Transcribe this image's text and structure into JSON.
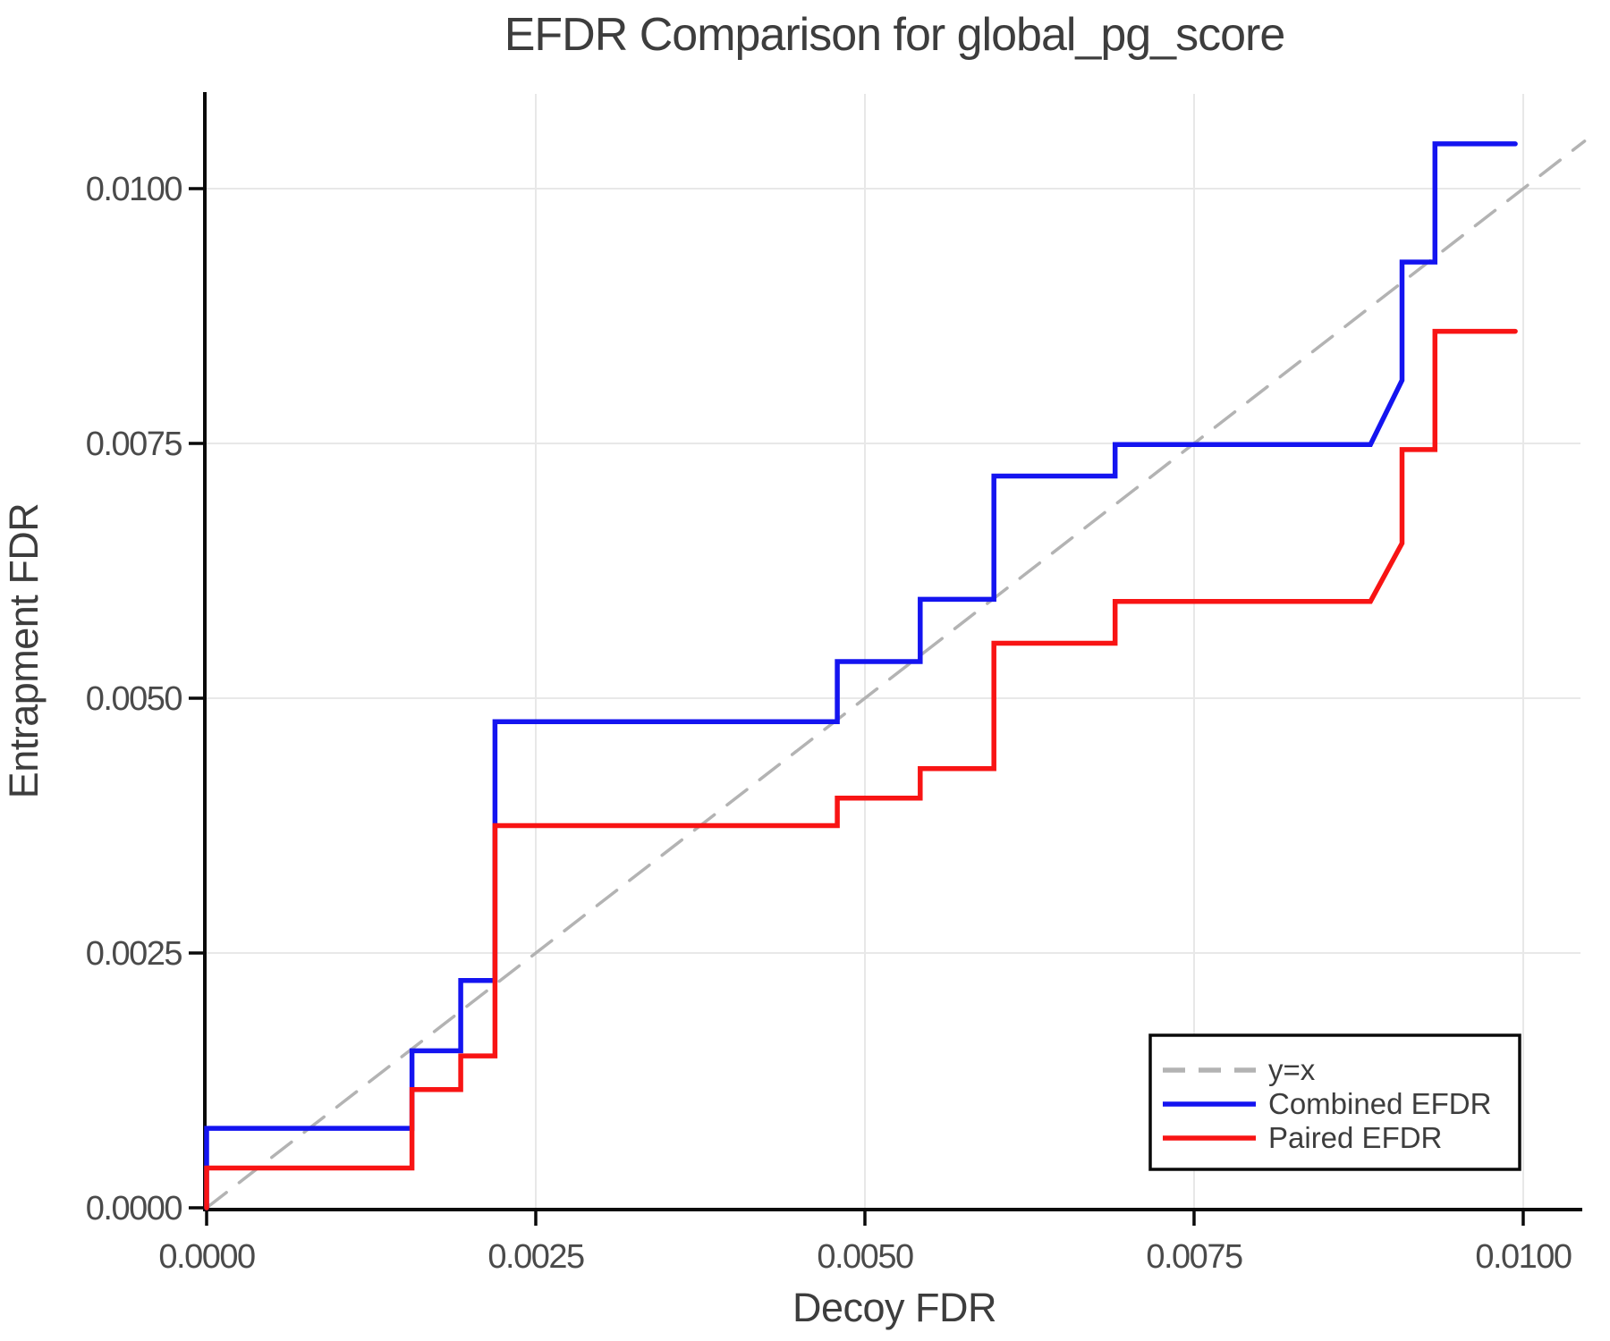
{
  "title": "EFDR Comparison for global_pg_score",
  "chart_data": {
    "type": "line",
    "subtype": "step-comparison",
    "title": "EFDR Comparison for global_pg_score",
    "xlabel": "Decoy FDR",
    "ylabel": "Entrapment FDR",
    "xlim": [
      0,
      0.010435
    ],
    "ylim": [
      0,
      0.01093
    ],
    "x_ticks": [
      0.0,
      0.0025,
      0.005,
      0.0075,
      0.01
    ],
    "y_ticks": [
      0.0,
      0.0025,
      0.005,
      0.0075,
      0.01
    ],
    "tick_decimals": 4,
    "grid": true,
    "legend_position": "lower right",
    "colors": {
      "combined": "#1414f0",
      "paired": "#f81414",
      "identity": "#b3b3b3",
      "grid": "#e8e8e8",
      "text": "#3d3d3d"
    },
    "series": [
      {
        "name": "y=x",
        "color": "#b3b3b3",
        "style": "dashed",
        "points": [
          [
            0,
            0
          ],
          [
            0.010466,
            0.010466
          ]
        ]
      },
      {
        "name": "Combined EFDR",
        "color": "#1414f0",
        "style": "solid",
        "points": [
          [
            0,
            0
          ],
          [
            0,
            0.00078
          ],
          [
            0.00156,
            0.00078
          ],
          [
            0.00156,
            0.00154
          ],
          [
            0.00193,
            0.00154
          ],
          [
            0.00193,
            0.00223
          ],
          [
            0.00219,
            0.00223
          ],
          [
            0.00219,
            0.00477
          ],
          [
            0.00479,
            0.00477
          ],
          [
            0.00479,
            0.00536
          ],
          [
            0.00542,
            0.00536
          ],
          [
            0.00542,
            0.00597
          ],
          [
            0.00598,
            0.00597
          ],
          [
            0.00598,
            0.00718
          ],
          [
            0.0069,
            0.00718
          ],
          [
            0.0069,
            0.00749
          ],
          [
            0.00884,
            0.00749
          ],
          [
            0.00908,
            0.00812
          ],
          [
            0.00908,
            0.00928
          ],
          [
            0.00933,
            0.00928
          ],
          [
            0.00933,
            0.01044
          ],
          [
            0.00994,
            0.01044
          ]
        ]
      },
      {
        "name": "Paired EFDR",
        "color": "#f81414",
        "style": "solid",
        "points": [
          [
            0,
            0
          ],
          [
            0,
            0.00039
          ],
          [
            0.00156,
            0.00039
          ],
          [
            0.00156,
            0.00116
          ],
          [
            0.00193,
            0.00116
          ],
          [
            0.00193,
            0.00149
          ],
          [
            0.00219,
            0.00149
          ],
          [
            0.00219,
            0.00375
          ],
          [
            0.00479,
            0.00375
          ],
          [
            0.00479,
            0.00402
          ],
          [
            0.00542,
            0.00402
          ],
          [
            0.00542,
            0.00431
          ],
          [
            0.00598,
            0.00431
          ],
          [
            0.00598,
            0.00554
          ],
          [
            0.0069,
            0.00554
          ],
          [
            0.0069,
            0.00595
          ],
          [
            0.00884,
            0.00595
          ],
          [
            0.00908,
            0.00652
          ],
          [
            0.00908,
            0.00744
          ],
          [
            0.00933,
            0.00744
          ],
          [
            0.00933,
            0.0086
          ],
          [
            0.00994,
            0.0086
          ]
        ]
      }
    ]
  }
}
